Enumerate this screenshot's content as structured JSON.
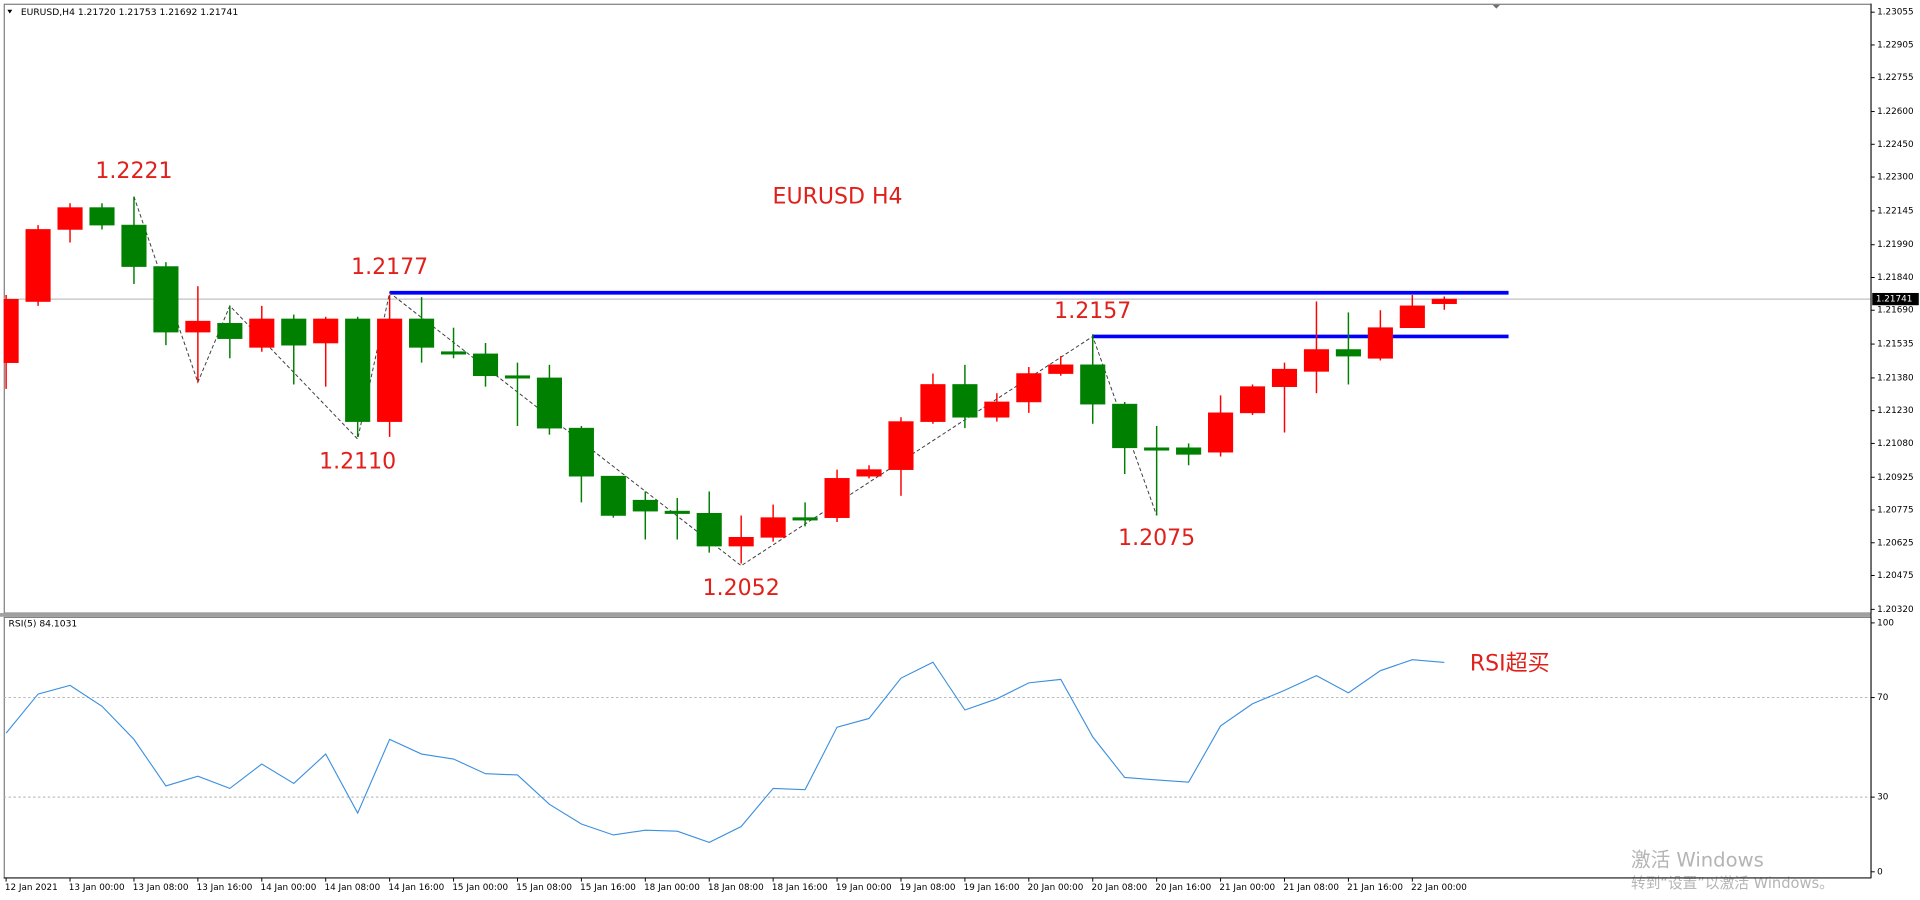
{
  "chart_data": [
    {
      "type": "candlestick",
      "title": "EURUSD,H4  1.21720 1.21753 1.21692 1.21741",
      "annotation": "EURUSD H4",
      "up_color": "#ff0000",
      "down_color": "#008000",
      "open": [
        1.2145,
        1.2173,
        1.2206,
        1.2216,
        1.2208,
        1.2189,
        1.2159,
        1.2163,
        1.2152,
        1.2165,
        1.2154,
        1.2165,
        1.2118,
        1.2165,
        1.215,
        1.2149,
        1.2139,
        1.2138,
        1.2115,
        1.2093,
        1.2082,
        1.2077,
        1.2076,
        1.2061,
        1.2065,
        1.2074,
        1.2074,
        1.2093,
        1.2096,
        1.2118,
        1.2135,
        1.212,
        1.2127,
        1.214,
        1.2144,
        1.2126,
        1.2106,
        1.2106,
        1.2104,
        1.2122,
        1.2134,
        1.2141,
        1.2151,
        1.2147,
        1.2161,
        1.2172
      ],
      "high": [
        1.2176,
        1.2208,
        1.2218,
        1.2218,
        1.2221,
        1.2191,
        1.218,
        1.2171,
        1.2171,
        1.2167,
        1.2166,
        1.2166,
        1.2176,
        1.2175,
        1.2161,
        1.2154,
        1.2145,
        1.2144,
        1.2116,
        1.2093,
        1.2086,
        1.2083,
        1.2086,
        1.2075,
        1.208,
        1.2081,
        1.2096,
        1.2098,
        1.212,
        1.214,
        1.2144,
        1.2131,
        1.2143,
        1.2148,
        1.2158,
        1.2127,
        1.2116,
        1.2108,
        1.213,
        1.2135,
        1.2145,
        1.2173,
        1.2168,
        1.2169,
        1.2176,
        1.21753
      ],
      "low": [
        1.2133,
        1.2171,
        1.22,
        1.2206,
        1.2181,
        1.2153,
        1.2136,
        1.2147,
        1.215,
        1.2135,
        1.2134,
        1.2111,
        1.2111,
        1.2145,
        1.2147,
        1.2134,
        1.2116,
        1.2112,
        1.2081,
        1.2074,
        1.2064,
        1.2064,
        1.2058,
        1.2053,
        1.2063,
        1.207,
        1.2072,
        1.2092,
        1.2084,
        1.2117,
        1.2115,
        1.2118,
        1.2122,
        1.2139,
        1.2117,
        1.2094,
        1.2075,
        1.2098,
        1.2102,
        1.2121,
        1.2113,
        1.2131,
        1.2135,
        1.2146,
        1.2161,
        1.21692
      ],
      "close": [
        1.2174,
        1.2206,
        1.2216,
        1.2208,
        1.2189,
        1.2159,
        1.2164,
        1.2156,
        1.2165,
        1.2153,
        1.2165,
        1.2118,
        1.2165,
        1.2152,
        1.2149,
        1.2139,
        1.2138,
        1.2115,
        1.2093,
        1.2075,
        1.2077,
        1.2076,
        1.2061,
        1.2065,
        1.2074,
        1.2073,
        1.2092,
        1.2096,
        1.2118,
        1.2135,
        1.212,
        1.2127,
        1.214,
        1.2144,
        1.2126,
        1.2106,
        1.2105,
        1.2103,
        1.2122,
        1.2134,
        1.2142,
        1.2151,
        1.2148,
        1.2161,
        1.2171,
        1.21741
      ],
      "ylim": [
        1.20303,
        1.23094
      ],
      "yticks": [
        1.23055,
        1.22905,
        1.22755,
        {
          "value": 1.226,
          "label": "1.22600"
        },
        {
          "value": 1.2245,
          "label": "1.22450"
        },
        {
          "value": 1.223,
          "label": "1.22300"
        },
        1.22145,
        {
          "value": 1.2199,
          "label": "1.21990"
        },
        {
          "value": 1.2184,
          "label": "1.21840"
        },
        {
          "value": 1.2169,
          "label": "1.21690"
        },
        1.21535,
        {
          "value": 1.2138,
          "label": "1.21380"
        },
        {
          "value": 1.2123,
          "label": "1.21230"
        },
        {
          "value": 1.2108,
          "label": "1.21080"
        },
        1.20925,
        1.20775,
        1.20625,
        1.20475,
        {
          "value": 1.2032,
          "label": "1.20320"
        }
      ],
      "last_price": 1.21741,
      "lines": [
        {
          "value": 1.2177,
          "from": 12,
          "color": "#0000ff"
        },
        {
          "value": 1.2157,
          "from": 34,
          "color": "#0000ff"
        }
      ],
      "zigzag": [
        {
          "index": 4,
          "value": 1.2221,
          "label": "1.2221"
        },
        {
          "index": 6,
          "value": 1.2136
        },
        {
          "index": 7,
          "value": 1.2171
        },
        {
          "index": 11,
          "value": 1.211,
          "label": "1.2110"
        },
        {
          "index": 12,
          "value": 1.2177,
          "label": "1.2177"
        },
        {
          "index": 23,
          "value": 1.2052,
          "label": "1.2052"
        },
        {
          "index": 34,
          "value": 1.2157,
          "label": "1.2157"
        },
        {
          "index": 36,
          "value": 1.2075,
          "label": "1.2075"
        }
      ]
    },
    {
      "type": "line",
      "title": "RSI(5) 84.1031",
      "annotation": "RSI超买",
      "color": "#3a8fdf",
      "categories": [
        "12 Jan 2021",
        null,
        "13 Jan 00:00",
        null,
        "13 Jan 08:00",
        null,
        "13 Jan 16:00",
        null,
        "14 Jan 00:00",
        null,
        "14 Jan 08:00",
        null,
        "14 Jan 16:00",
        null,
        "15 Jan 00:00",
        null,
        "15 Jan 08:00",
        null,
        "15 Jan 16:00",
        null,
        "18 Jan 00:00",
        null,
        "18 Jan 08:00",
        null,
        "18 Jan 16:00",
        null,
        "19 Jan 00:00",
        null,
        "19 Jan 08:00",
        null,
        "19 Jan 16:00",
        null,
        "20 Jan 00:00",
        null,
        "20 Jan 08:00",
        null,
        "20 Jan 16:00",
        null,
        "21 Jan 00:00",
        null,
        "21 Jan 08:00",
        null,
        "21 Jan 16:00",
        null,
        "22 Jan 00:00",
        null
      ],
      "values": [
        55.7,
        71.4,
        74.9,
        66.5,
        53.2,
        34.5,
        38.4,
        33.5,
        43.3,
        35.5,
        47.3,
        23.6,
        53.2,
        47.3,
        45.3,
        39.4,
        38.9,
        27.1,
        19.2,
        14.8,
        16.7,
        16.3,
        11.8,
        18.2,
        33.5,
        33.0,
        58.1,
        61.6,
        77.8,
        84.2,
        65.0,
        69.5,
        75.9,
        77.3,
        54.2,
        37.9,
        36.9,
        36.0,
        58.6,
        67.5,
        72.9,
        78.8,
        71.9,
        80.8,
        85.2,
        84.1
      ],
      "ylim": [
        0,
        100
      ],
      "yticks": [
        100,
        70,
        30,
        0
      ],
      "levels": [
        70,
        30
      ]
    }
  ],
  "watermark": {
    "title": "激活 Windows",
    "subtitle": "转到“设置”以激活 Windows。"
  }
}
